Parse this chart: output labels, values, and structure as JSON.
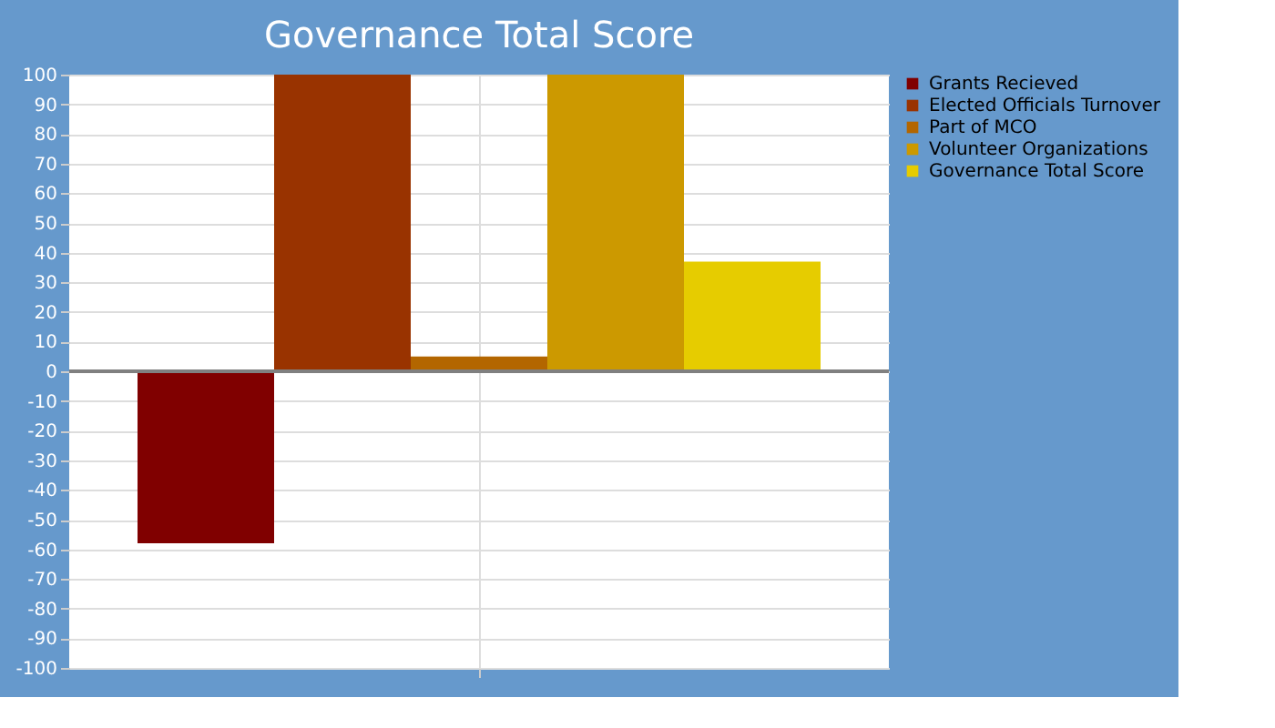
{
  "chart_data": {
    "type": "bar",
    "title": "Governance Total Score",
    "categories": [
      null
    ],
    "series": [
      {
        "name": "Grants Recieved",
        "color": "#800000",
        "values": [
          -58
        ]
      },
      {
        "name": "Elected Officials Turnover",
        "color": "#993300",
        "values": [
          100
        ]
      },
      {
        "name": "Part of MCO",
        "color": "#b36600",
        "values": [
          5
        ]
      },
      {
        "name": "Volunteer Organizations",
        "color": "#cc9900",
        "values": [
          100
        ]
      },
      {
        "name": "Governance Total Score",
        "color": "#e6cc00",
        "values": [
          37
        ]
      }
    ],
    "ylim": [
      -100,
      100
    ],
    "yticks": [
      -100,
      -90,
      -80,
      -70,
      -60,
      -50,
      -40,
      -30,
      -20,
      -10,
      0,
      10,
      20,
      30,
      40,
      50,
      60,
      70,
      80,
      90,
      100
    ],
    "grid": true,
    "legend": "top right",
    "ref_lines": [
      {
        "axis": "y",
        "value": 0,
        "label": null,
        "color": "#808080"
      }
    ]
  }
}
